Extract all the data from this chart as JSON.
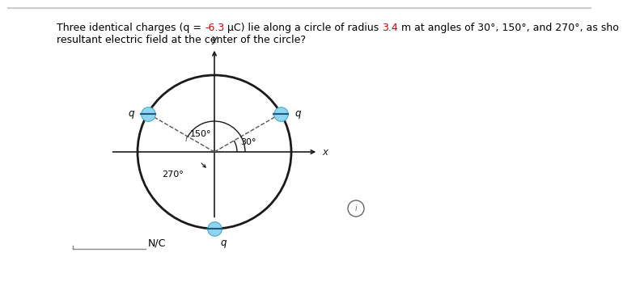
{
  "bg_color": "#ffffff",
  "border_color": "#cccccc",
  "title_line1_parts": [
    {
      "text": "Three identical charges (q = ",
      "color": "#000000"
    },
    {
      "text": "-6.3",
      "color": "#cc0000"
    },
    {
      "text": " μC) lie along a circle of radius ",
      "color": "#000000"
    },
    {
      "text": "3.4",
      "color": "#cc0000"
    },
    {
      "text": " m at angles of 30°, 150°, and 270°, as sho",
      "color": "#000000"
    }
  ],
  "title_line2": "resultant electric field at the center of the circle?",
  "title_color": "#000000",
  "font_size_title": 9.0,
  "circle_color": "#1a1a1a",
  "circle_lw": 2.0,
  "angles_deg": [
    30,
    150,
    270
  ],
  "angle_labels": [
    "30°",
    "150°",
    "270°"
  ],
  "charge_label": "q",
  "charge_ball_color": "#90d4f0",
  "charge_ball_size": 160,
  "charge_ball_edge": "#4aabcc",
  "minus_color": "#1a5a80",
  "axis_color": "#1a1a1a",
  "axis_lw": 1.2,
  "axis_label_x": "x",
  "axis_label_y": "y",
  "dashed_line_color": "#555555",
  "dashed_lw": 1.0,
  "arc_color": "#1a1a1a",
  "arc_lw": 1.0,
  "info_symbol": "i",
  "answer_label": "N/C",
  "font_size_labels": 8.5,
  "font_size_angles": 8.0,
  "font_size_answer": 9.0
}
